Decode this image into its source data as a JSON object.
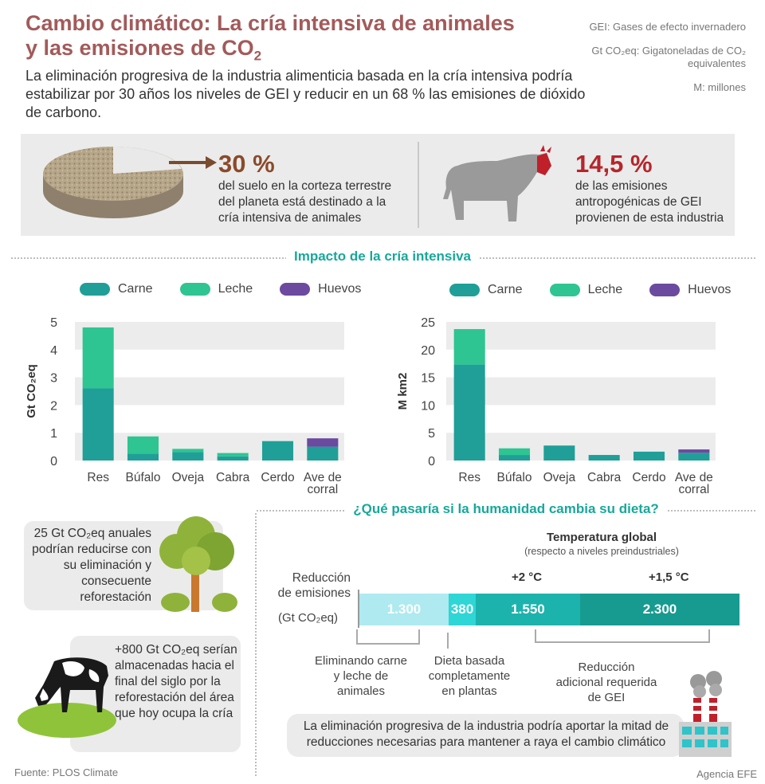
{
  "header": {
    "title_line1": "Cambio climático: La cría intensiva de animales",
    "title_line2": "y las emisiones de CO",
    "title_sub": "2",
    "subtitle": "La eliminación progresiva de la industria alimenticia basada en la cría intensiva podría estabilizar por 30 años los niveles de GEI y reducir en un 68 % las emisiones de dióxido de carbono."
  },
  "notes": {
    "gei": "GEI: Gases de efecto invernadero",
    "gt": "Gt CO₂eq: Gigatoneladas de CO₂ equivalentes",
    "m": "M: millones"
  },
  "facts": {
    "soil_pct": "30 %",
    "soil_text": "del suelo en la corteza terrestre del planeta está destinado a la cría intensiva de animales",
    "gei_pct": "14,5 %",
    "gei_text": "de las emisiones antropogénicas de GEI provienen de esta industria"
  },
  "section1_title": "Impacto de la cría intensiva",
  "legend": {
    "meat": "Carne",
    "milk": "Leche",
    "eggs": "Huevos"
  },
  "colors": {
    "meat": "#1f9f98",
    "milk": "#2ec592",
    "eggs": "#6b4aa0",
    "grid": "#ececec",
    "accent": "#17a89b",
    "title": "#a35a5a"
  },
  "chart_data": [
    {
      "type": "bar",
      "stacked": true,
      "ylabel": "Gt CO₂eq",
      "ylim": [
        0,
        5
      ],
      "yticks": [
        "0",
        "1",
        "2",
        "3",
        "4",
        "5"
      ],
      "categories": [
        "Res",
        "Búfalo",
        "Oveja",
        "Cabra",
        "Cerdo",
        "Ave de corral"
      ],
      "series": [
        {
          "name": "Carne",
          "values": [
            2.6,
            0.25,
            0.3,
            0.15,
            0.7,
            0.5
          ]
        },
        {
          "name": "Leche",
          "values": [
            2.2,
            0.62,
            0.12,
            0.12,
            0,
            0
          ]
        },
        {
          "name": "Huevos",
          "values": [
            0,
            0,
            0,
            0,
            0,
            0.3
          ]
        }
      ]
    },
    {
      "type": "bar",
      "stacked": true,
      "ylabel": "M km2",
      "ylim": [
        0,
        25
      ],
      "yticks": [
        "0",
        "5",
        "10",
        "15",
        "20",
        "25"
      ],
      "categories": [
        "Res",
        "Búfalo",
        "Oveja",
        "Cabra",
        "Cerdo",
        "Ave de corral"
      ],
      "series": [
        {
          "name": "Carne",
          "values": [
            17.3,
            1.0,
            2.7,
            1.0,
            1.6,
            1.4
          ]
        },
        {
          "name": "Leche",
          "values": [
            6.4,
            1.2,
            0,
            0,
            0,
            0
          ]
        },
        {
          "name": "Huevos",
          "values": [
            0,
            0,
            0,
            0,
            0,
            0.6
          ]
        }
      ]
    }
  ],
  "boxes": {
    "reforest": "25 Gt CO₂eq anuales podrían reducirse con su eliminación y consecuente reforestación",
    "stored": "+800 Gt CO₂eq serían almacenadas hacia el final del siglo por la reforestación del área que hoy ocupa la cría"
  },
  "section2_title": "¿Qué pasaría si la humanidad cambia su dieta?",
  "reduction": {
    "temp_title": "Temperatura global",
    "temp_sub": "(respecto a niveles preindustriales)",
    "temp2": "+2 °C",
    "temp15": "+1,5 °C",
    "label1": "Reducción",
    "label2": "de emisiones",
    "unit": "(Gt CO₂eq)",
    "segments": [
      {
        "label": "1.300",
        "value": 1300,
        "color": "#aeeaf0"
      },
      {
        "label": "380",
        "value": 380,
        "color": "#2fd6d6"
      },
      {
        "label": "1.550",
        "value": 1550,
        "color": "#1cb3ad"
      },
      {
        "label": "2.300",
        "value": 2300,
        "color": "#179b90"
      }
    ],
    "cap_elim": "Eliminando carne y leche de animales",
    "cap_diet": "Dieta basada completamente en plantas",
    "cap_add": "Reducción adicional requerida de GEI",
    "conclusion": "La eliminación progresiva de la industria podría aportar la mitad de reducciones necesarias para mantener a raya el cambio climático"
  },
  "footer": {
    "source": "Fuente: PLOS Climate",
    "agency": "Agencia EFE"
  }
}
